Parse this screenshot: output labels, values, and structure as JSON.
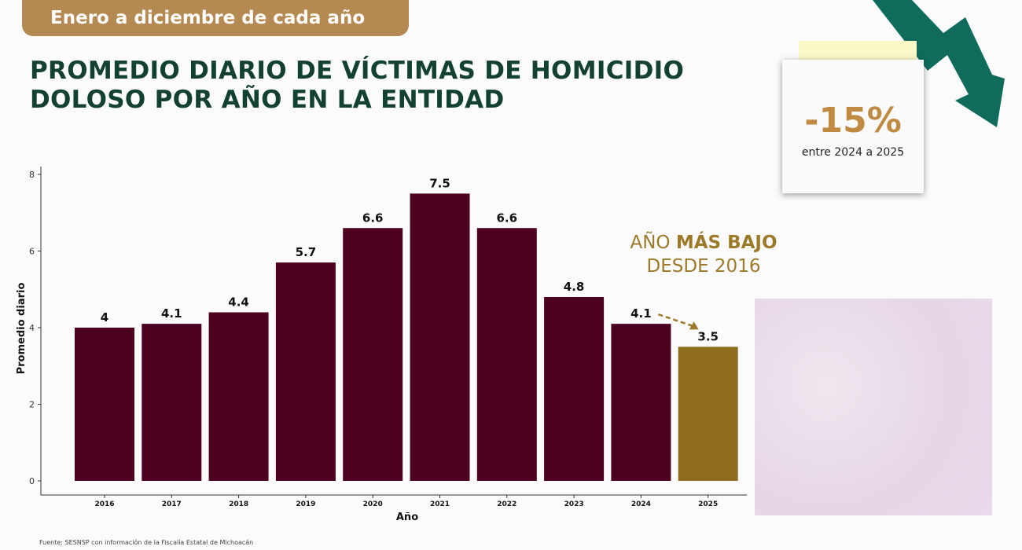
{
  "header": {
    "period_label": "Enero a diciembre de cada año",
    "title_line1": "PROMEDIO DIARIO DE VÍCTIMAS DE HOMICIDIO",
    "title_line2": "DOLOSO POR AÑO EN LA ENTIDAD"
  },
  "callout": {
    "change": "-15%",
    "between": "entre 2024 a 2025",
    "lowest_line1_pre": "AÑO ",
    "lowest_line1_bold": "MÁS BAJO",
    "lowest_line2": "DESDE 2016"
  },
  "footer": {
    "source": "Fuente: SESNSP con información de la Fiscalía Estatal de Michoacán"
  },
  "colors": {
    "bar": "#4e0021",
    "highlight": "#8e6d1f",
    "title": "#12412f",
    "arrow": "#0f6b5c"
  },
  "chart_data": {
    "type": "bar",
    "categories": [
      "2016",
      "2017",
      "2018",
      "2019",
      "2020",
      "2021",
      "2022",
      "2023",
      "2024",
      "2025"
    ],
    "values": [
      4,
      4.1,
      4.4,
      5.7,
      6.6,
      7.5,
      6.6,
      4.8,
      4.1,
      3.5
    ],
    "data_labels": [
      "4",
      "4.1",
      "4.4",
      "5.7",
      "6.6",
      "7.5",
      "6.6",
      "4.8",
      "4.1",
      "3.5"
    ],
    "highlight_category": "2025",
    "xlabel": "Año",
    "ylabel": "Promedio diario",
    "ylim": [
      0,
      8
    ],
    "yticks": [
      "0",
      "2",
      "4",
      "6",
      "8"
    ],
    "grid": false,
    "legend": "none"
  }
}
